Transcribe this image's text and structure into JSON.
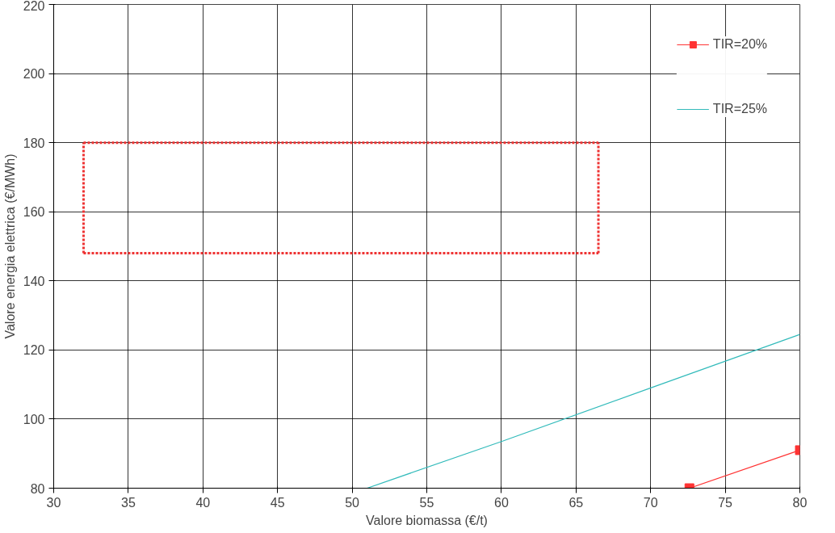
{
  "chart_data": {
    "type": "line",
    "xlabel": "Valore biomassa (€/t)",
    "ylabel": "Valore energia elettrica (€/MWh)",
    "xlim": [
      30,
      80
    ],
    "xticks": [
      30,
      35,
      40,
      45,
      50,
      55,
      60,
      65,
      70,
      75,
      80
    ],
    "ylim": [
      80,
      220
    ],
    "yticks": [
      80,
      100,
      120,
      140,
      160,
      180,
      200,
      220
    ],
    "grid": true,
    "legend": "top right",
    "series": [
      {
        "name": "TIR=20%",
        "color": "#ff3333",
        "marker": "square",
        "x": [
          72.6,
          80
        ],
        "values": [
          80,
          91
        ]
      },
      {
        "name": "TIR=25%",
        "color": "#33bbbb",
        "marker": "none",
        "x": [
          51,
          60,
          70,
          80
        ],
        "values": [
          80,
          93.5,
          109,
          124.5
        ]
      },
      {
        "color": "#ee3333",
        "marker": "none",
        "line_style": "dotted",
        "x": [
          32,
          66.5
        ],
        "values": [
          180,
          180
        ]
      },
      {
        "color": "#ee3333",
        "marker": "none",
        "line_style": "dotted",
        "x": [
          32,
          66.5
        ],
        "values": [
          148,
          148
        ]
      },
      {
        "color": "#ee3333",
        "marker": "none",
        "line_style": "dotted",
        "x": [
          32,
          32
        ],
        "values": [
          148,
          180
        ]
      },
      {
        "color": "#ee3333",
        "marker": "none",
        "line_style": "dotted",
        "x": [
          66.5,
          66.5
        ],
        "values": [
          148,
          180
        ]
      }
    ]
  }
}
